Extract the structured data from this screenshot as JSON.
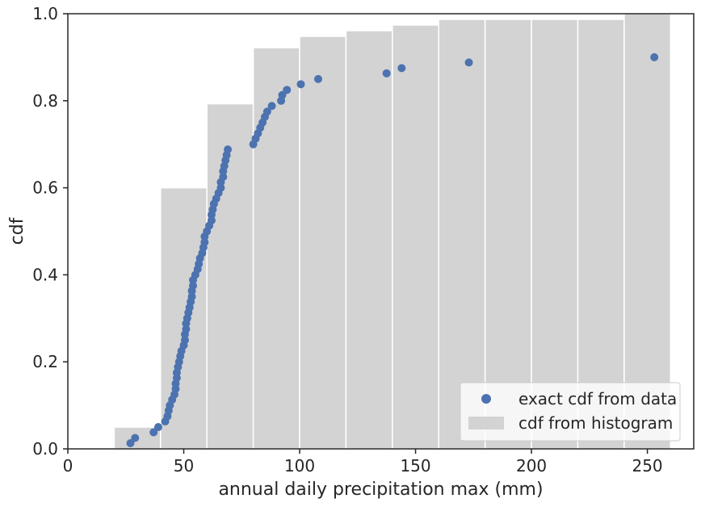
{
  "chart_data": {
    "type": "scatter",
    "xlabel": "annual daily precipitation max (mm)",
    "ylabel": "cdf",
    "xlim": [
      0,
      270
    ],
    "ylim": [
      0,
      1.0
    ],
    "x_ticks": [
      0,
      50,
      100,
      150,
      200,
      250
    ],
    "x_tick_labels": [
      "0",
      "50",
      "100",
      "150",
      "200",
      "250"
    ],
    "y_ticks": [
      0.0,
      0.2,
      0.4,
      0.6,
      0.8,
      1.0
    ],
    "y_tick_labels": [
      "0.0",
      "0.2",
      "0.4",
      "0.6",
      "0.8",
      "1.0"
    ],
    "grid": false,
    "legend_position": "bottom-right",
    "series": [
      {
        "name": "cdf from histogram",
        "kind": "bar",
        "color": "#d3d3d3",
        "edge_color": "#ffffff",
        "bins": [
          {
            "x0": 20,
            "x1": 40,
            "value": 0.05
          },
          {
            "x0": 40,
            "x1": 60,
            "value": 0.6
          },
          {
            "x0": 60,
            "x1": 80,
            "value": 0.793
          },
          {
            "x0": 80,
            "x1": 100,
            "value": 0.922
          },
          {
            "x0": 100,
            "x1": 120,
            "value": 0.948
          },
          {
            "x0": 120,
            "x1": 140,
            "value": 0.961
          },
          {
            "x0": 140,
            "x1": 160,
            "value": 0.974
          },
          {
            "x0": 160,
            "x1": 180,
            "value": 0.987
          },
          {
            "x0": 180,
            "x1": 200,
            "value": 0.987
          },
          {
            "x0": 200,
            "x1": 220,
            "value": 0.987
          },
          {
            "x0": 220,
            "x1": 240,
            "value": 0.987
          },
          {
            "x0": 240,
            "x1": 260,
            "value": 1.0
          }
        ]
      },
      {
        "name": "exact cdf from data",
        "kind": "scatter",
        "color": "#4c72b0",
        "x": [
          27,
          29,
          37,
          39,
          42,
          43,
          43.5,
          44,
          45,
          46,
          46.5,
          46.5,
          47,
          47,
          47.5,
          48,
          48.5,
          49,
          50,
          50.5,
          50.5,
          51,
          51,
          51.5,
          52,
          52.5,
          53,
          53.5,
          53.5,
          54,
          54,
          55,
          56,
          56.5,
          57,
          58,
          58.5,
          59,
          59,
          60,
          61,
          62,
          62,
          62.5,
          63,
          64,
          65,
          66,
          66,
          67,
          67,
          67.5,
          68,
          68.5,
          69,
          80,
          81,
          82,
          83,
          84,
          85,
          86,
          88,
          92,
          92.5,
          94.5,
          100.5,
          108,
          137.5,
          144,
          173,
          253
        ],
        "y": [
          0.013,
          0.025,
          0.038,
          0.05,
          0.063,
          0.075,
          0.088,
          0.1,
          0.113,
          0.125,
          0.138,
          0.15,
          0.163,
          0.175,
          0.188,
          0.2,
          0.213,
          0.225,
          0.238,
          0.25,
          0.263,
          0.275,
          0.288,
          0.3,
          0.313,
          0.325,
          0.338,
          0.35,
          0.363,
          0.375,
          0.388,
          0.4,
          0.413,
          0.425,
          0.438,
          0.45,
          0.463,
          0.475,
          0.488,
          0.5,
          0.513,
          0.525,
          0.538,
          0.55,
          0.563,
          0.575,
          0.588,
          0.6,
          0.613,
          0.625,
          0.638,
          0.65,
          0.663,
          0.675,
          0.688,
          0.7,
          0.713,
          0.725,
          0.738,
          0.75,
          0.763,
          0.775,
          0.788,
          0.8,
          0.813,
          0.825,
          0.838,
          0.85,
          0.863,
          0.875,
          0.888,
          0.9
        ]
      }
    ]
  },
  "legend": [
    {
      "label": "exact cdf from data",
      "marker": "circle",
      "color": "#4c72b0"
    },
    {
      "label": "cdf from histogram",
      "marker": "patch",
      "color": "#d3d3d3"
    }
  ]
}
